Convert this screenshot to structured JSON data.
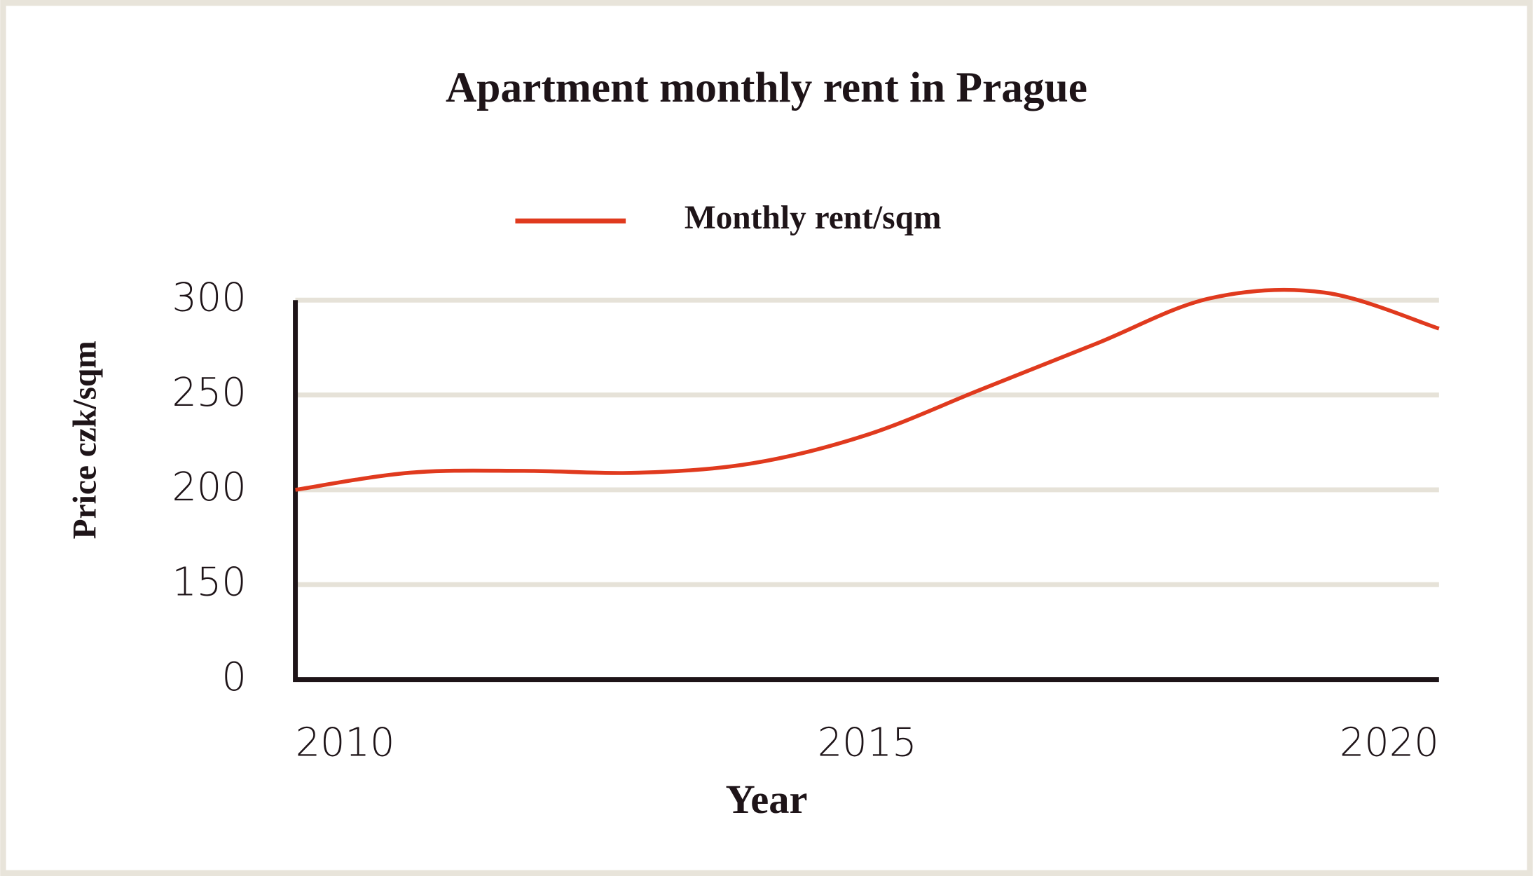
{
  "chart_data": {
    "type": "line",
    "title": "Apartment monthly rent in Prague",
    "x_label": "Year",
    "y_label": "Price czk/sqm",
    "x": [
      2010,
      2011,
      2012,
      2013,
      2014,
      2015,
      2016,
      2017,
      2018,
      2019,
      2020
    ],
    "series": [
      {
        "name": "Monthly rent/sqm",
        "color": "#e03a1e",
        "values": [
          200,
          209,
          210,
          209,
          214,
          229,
          253,
          277,
          301,
          304,
          285
        ]
      }
    ],
    "xlim": [
      2010,
      2020
    ],
    "xticks": [
      2010,
      2015,
      2020
    ],
    "ylim": [
      0,
      300
    ],
    "yticks": [
      0,
      150,
      200,
      250,
      300
    ],
    "y_axis_break": true,
    "grid": true,
    "grid_color": "#e6e2d8",
    "smooth": true
  }
}
